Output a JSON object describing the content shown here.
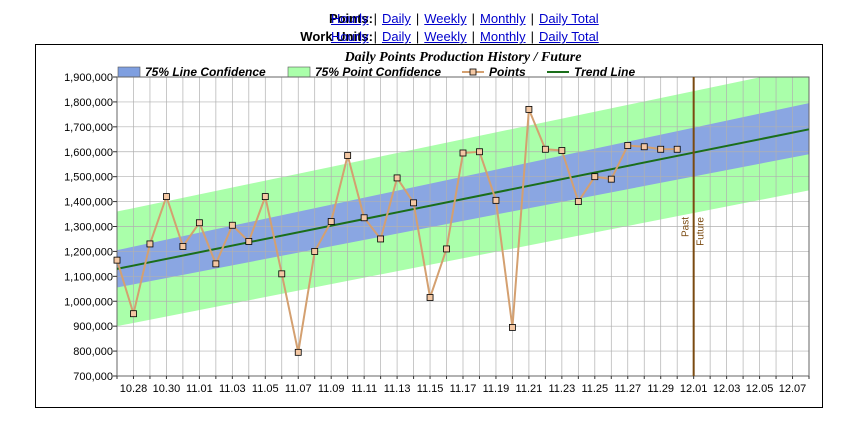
{
  "nav": {
    "points_label": "Points:",
    "work_units_label": "Work Units:",
    "links": [
      "Hourly",
      "Daily",
      "Weekly",
      "Monthly",
      "Daily Total"
    ],
    "separator": "|"
  },
  "chart_data": {
    "type": "line",
    "title": "Daily Points Production History / Future",
    "legend": [
      {
        "name": "75% Line Confidence",
        "kind": "area",
        "color": "#7f9fe0"
      },
      {
        "name": "75% Point Confidence",
        "kind": "area",
        "color": "#aaffaa"
      },
      {
        "name": "Points",
        "kind": "line-marker",
        "color": "#d4a070"
      },
      {
        "name": "Trend Line",
        "kind": "line",
        "color": "#1a6e1a"
      }
    ],
    "legend_position": "top",
    "grid": true,
    "ylim": [
      700000,
      1900000
    ],
    "yticks": [
      700000,
      800000,
      900000,
      1000000,
      1100000,
      1200000,
      1300000,
      1400000,
      1500000,
      1600000,
      1700000,
      1800000,
      1900000
    ],
    "ytick_labels": [
      "700,000",
      "800,000",
      "900,000",
      "1,000,000",
      "1,100,000",
      "1,200,000",
      "1,300,000",
      "1,400,000",
      "1,500,000",
      "1,600,000",
      "1,700,000",
      "1,800,000",
      "1,900,000"
    ],
    "xdates": [
      "10.27",
      "10.28",
      "10.29",
      "10.30",
      "10.31",
      "11.01",
      "11.02",
      "11.03",
      "11.04",
      "11.05",
      "11.06",
      "11.07",
      "11.08",
      "11.09",
      "11.10",
      "11.11",
      "11.12",
      "11.13",
      "11.14",
      "11.15",
      "11.16",
      "11.17",
      "11.18",
      "11.19",
      "11.20",
      "11.21",
      "11.22",
      "11.23",
      "11.24",
      "11.25",
      "11.26",
      "11.27",
      "11.28",
      "11.29",
      "11.30",
      "12.01",
      "12.02",
      "12.03",
      "12.04",
      "12.05",
      "12.06",
      "12.07",
      "12.08"
    ],
    "xtick_labels": [
      "10.28",
      "10.30",
      "11.01",
      "11.03",
      "11.05",
      "11.07",
      "11.09",
      "11.11",
      "11.13",
      "11.15",
      "11.17",
      "11.19",
      "11.21",
      "11.23",
      "11.25",
      "11.27",
      "11.29",
      "12.01",
      "12.03",
      "12.05",
      "12.07"
    ],
    "series": [
      {
        "name": "Points",
        "x": [
          "10.27",
          "10.28",
          "10.29",
          "10.30",
          "10.31",
          "11.01",
          "11.02",
          "11.03",
          "11.04",
          "11.05",
          "11.06",
          "11.07",
          "11.08",
          "11.09",
          "11.10",
          "11.11",
          "11.12",
          "11.13",
          "11.14",
          "11.15",
          "11.16",
          "11.17",
          "11.18",
          "11.19",
          "11.20",
          "11.21",
          "11.22",
          "11.23",
          "11.24",
          "11.25",
          "11.26",
          "11.27",
          "11.28",
          "11.29",
          "11.30"
        ],
        "values": [
          1165000,
          950000,
          1230000,
          1420000,
          1220000,
          1315000,
          1150000,
          1305000,
          1240000,
          1420000,
          1110000,
          795000,
          1200000,
          1320000,
          1585000,
          1335000,
          1250000,
          1495000,
          1395000,
          1015000,
          1210000,
          1595000,
          1600000,
          1405000,
          895000,
          1770000,
          1610000,
          1605000,
          1400000,
          1500000,
          1490000,
          1625000,
          1620000,
          1610000,
          1610000
        ]
      },
      {
        "name": "Trend Line",
        "x": [
          "10.27",
          "12.08"
        ],
        "values": [
          1130000,
          1690000
        ]
      }
    ],
    "bands": [
      {
        "name": "75% Point Confidence",
        "x": [
          "10.27",
          "12.08"
        ],
        "upper": [
          1360000,
          1940000
        ],
        "lower": [
          900000,
          1445000
        ]
      },
      {
        "name": "75% Line Confidence",
        "x": [
          "10.27",
          "12.08"
        ],
        "upper": [
          1205000,
          1795000
        ],
        "lower": [
          1055000,
          1590000
        ]
      }
    ],
    "divider": {
      "x": "12.01",
      "left_label": "Past",
      "right_label": "Future",
      "color": "#7a4a10"
    }
  }
}
